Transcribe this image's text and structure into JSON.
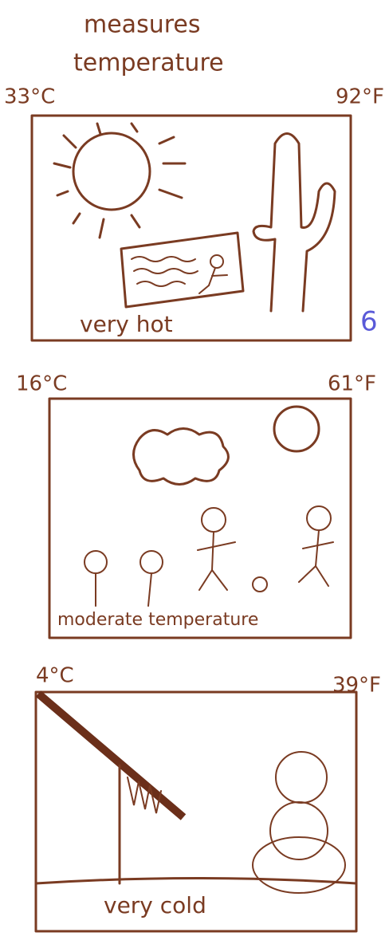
{
  "title": [
    "measures",
    "temperature"
  ],
  "panels": [
    {
      "celsius": "33°C",
      "fahrenheit": "92°F",
      "caption": "very hot"
    },
    {
      "celsius": "16°C",
      "fahrenheit": "61°F",
      "caption": "moderate temperature"
    },
    {
      "celsius": "4°C",
      "fahrenheit": "39°F",
      "caption": "very cold"
    }
  ],
  "edge_note": "6"
}
